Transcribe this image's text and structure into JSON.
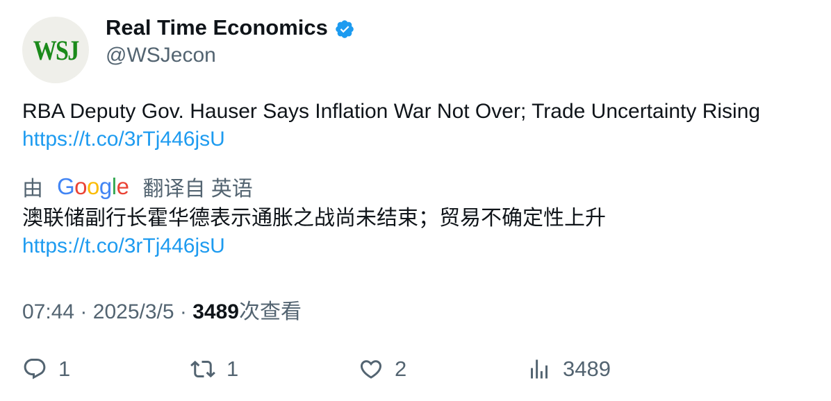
{
  "author": {
    "avatar_text": "WSJ",
    "name": "Real Time Economics",
    "handle": "@WSJecon",
    "verified_icon": "verified-badge-icon",
    "verified_color": "#1d9bf0"
  },
  "tweet": {
    "text": "RBA Deputy Gov. Hauser Says Inflation War Not Over; Trade Uncertainty Rising ",
    "link": "https://t.co/3rTj446jsU"
  },
  "translation": {
    "prefix": "由",
    "provider": {
      "letters": [
        "G",
        "o",
        "o",
        "g",
        "l",
        "e"
      ],
      "colors": [
        "#4285f4",
        "#ea4335",
        "#fbbc05",
        "#4285f4",
        "#34a853",
        "#ea4335"
      ]
    },
    "suffix": "翻译自 英语",
    "text": "澳联储副行长霍华德表示通胀之战尚未结束；贸易不确定性上升",
    "link": "https://t.co/3rTj446jsU"
  },
  "meta": {
    "time": "07:44",
    "separator": "·",
    "date": "2025/3/5",
    "views_count": "3489",
    "views_label": "次查看"
  },
  "actions": {
    "reply_count": "1",
    "retweet_count": "1",
    "like_count": "2",
    "views_count": "3489"
  },
  "colors": {
    "text": "#0f1419",
    "secondary": "#536471",
    "link": "#1d9bf0",
    "avatar_bg": "#efefea",
    "avatar_fg": "#1a8a1a"
  }
}
